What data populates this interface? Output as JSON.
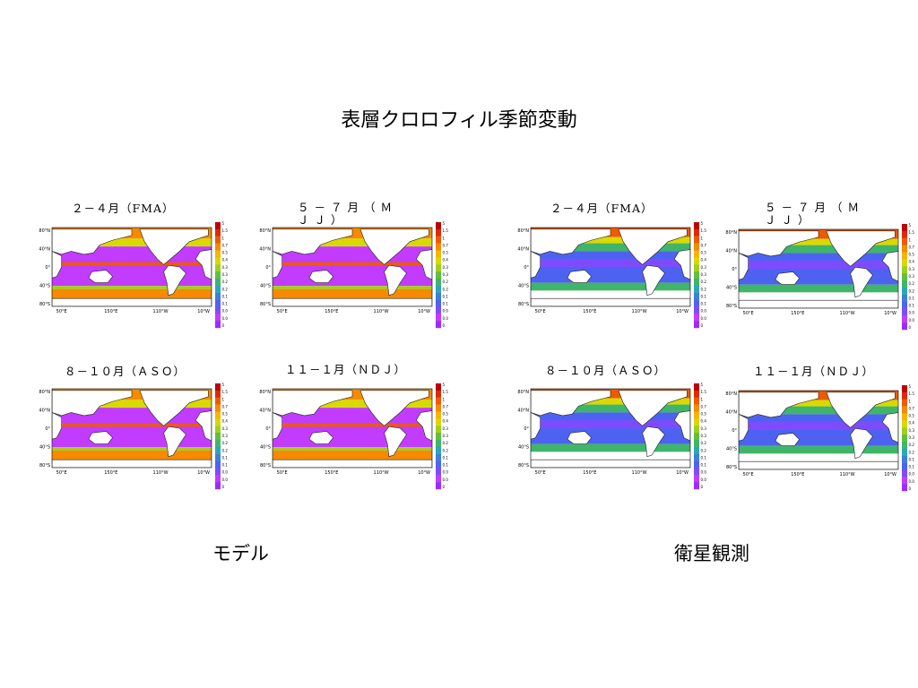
{
  "slide": {
    "title": "表層クロロフィル季節変動",
    "group_labels": {
      "model": "モデル",
      "satellite": "衛星観測"
    }
  },
  "colors": {
    "scale": [
      "#9b2cff",
      "#c23cff",
      "#7f4bff",
      "#4e62f2",
      "#3d7fd9",
      "#2aa8b8",
      "#3fb56a",
      "#5fc03a",
      "#9fd020",
      "#d9d900",
      "#f6b500",
      "#f68a00",
      "#ef5a00",
      "#e02a00",
      "#c00000"
    ],
    "land": "#ffffff",
    "missing": "#ffffff",
    "coast": "#222222"
  },
  "chart_data": [
    {
      "type": "heatmap",
      "group": "model",
      "label": "２－４月（FMA）",
      "x_ticks": [
        "50°E",
        "150°E",
        "110°W",
        "10°W"
      ],
      "y_ticks": [
        "80°N",
        "40°N",
        "0°",
        "40°S",
        "80°S"
      ],
      "colorbar_ticks": [
        "5",
        "1.5",
        "1",
        "0.75",
        "0.5",
        "0.4",
        "0.35",
        "0.3",
        "0.25",
        "0.2",
        "0.15",
        "0.1",
        "0.05",
        "0.03",
        "0"
      ]
    },
    {
      "type": "heatmap",
      "group": "model",
      "label": "５－７月（ＭＪＪ）",
      "x_ticks": [
        "50°E",
        "150°E",
        "110°W",
        "10°W"
      ],
      "y_ticks": [
        "80°N",
        "40°N",
        "0°",
        "40°S",
        "80°S"
      ],
      "colorbar_ticks": [
        "5",
        "1.5",
        "1",
        "0.75",
        "0.5",
        "0.4",
        "0.35",
        "0.3",
        "0.25",
        "0.2",
        "0.15",
        "0.1",
        "0.05",
        "0.03",
        "0"
      ]
    },
    {
      "type": "heatmap",
      "group": "satellite",
      "label": "２－４月（FMA）",
      "x_ticks": [
        "50°E",
        "150°E",
        "110°W",
        "10°W"
      ],
      "y_ticks": [
        "80°N",
        "40°N",
        "0°",
        "40°S",
        "80°S"
      ],
      "colorbar_ticks": [
        "5",
        "1.5",
        "1",
        "0.75",
        "0.5",
        "0.4",
        "0.35",
        "0.3",
        "0.25",
        "0.2",
        "0.15",
        "0.1",
        "0.05",
        "0.03",
        "0"
      ]
    },
    {
      "type": "heatmap",
      "group": "satellite",
      "label": "５－７月（ＭＪＪ）",
      "x_ticks": [
        "50°E",
        "150°E",
        "110°W",
        "10°W"
      ],
      "y_ticks": [
        "80°N",
        "40°N",
        "0°",
        "40°S",
        "80°S"
      ],
      "colorbar_ticks": [
        "5",
        "1.5",
        "1",
        "0.75",
        "0.5",
        "0.4",
        "0.35",
        "0.3",
        "0.25",
        "0.2",
        "0.15",
        "0.1",
        "0.05",
        "0.03",
        "0"
      ]
    },
    {
      "type": "heatmap",
      "group": "model",
      "label": "８－１０月（ＡＳＯ）",
      "x_ticks": [
        "50°E",
        "150°E",
        "110°W",
        "10°W"
      ],
      "y_ticks": [
        "80°N",
        "40°N",
        "0°",
        "40°S",
        "80°S"
      ],
      "colorbar_ticks": [
        "5",
        "1.5",
        "1",
        "0.75",
        "0.5",
        "0.4",
        "0.35",
        "0.3",
        "0.25",
        "0.2",
        "0.15",
        "0.1",
        "0.05",
        "0.03",
        "0"
      ]
    },
    {
      "type": "heatmap",
      "group": "model",
      "label": "１１－１月（ＮＤＪ）",
      "x_ticks": [
        "50°E",
        "150°E",
        "110°W",
        "10°W"
      ],
      "y_ticks": [
        "80°N",
        "40°N",
        "0°",
        "40°S",
        "80°S"
      ],
      "colorbar_ticks": [
        "5",
        "1.5",
        "1",
        "0.75",
        "0.5",
        "0.4",
        "0.35",
        "0.3",
        "0.25",
        "0.2",
        "0.15",
        "0.1",
        "0.05",
        "0.03",
        "0"
      ]
    },
    {
      "type": "heatmap",
      "group": "satellite",
      "label": "８－１０月（ＡＳＯ）",
      "x_ticks": [
        "50°E",
        "150°E",
        "110°W",
        "10°W"
      ],
      "y_ticks": [
        "80°N",
        "40°N",
        "0°",
        "40°S",
        "80°S"
      ],
      "colorbar_ticks": [
        "5",
        "1.5",
        "1",
        "0.75",
        "0.5",
        "0.4",
        "0.35",
        "0.3",
        "0.25",
        "0.2",
        "0.15",
        "0.1",
        "0.05",
        "0.03",
        "0"
      ]
    },
    {
      "type": "heatmap",
      "group": "satellite",
      "label": "１１－１月（ＮＤＪ）",
      "x_ticks": [
        "50°E",
        "150°E",
        "110°W",
        "10°W"
      ],
      "y_ticks": [
        "80°N",
        "40°N",
        "0°",
        "40°S",
        "80°S"
      ],
      "colorbar_ticks": [
        "5",
        "1.5",
        "1",
        "0.75",
        "0.5",
        "0.4",
        "0.35",
        "0.3",
        "0.25",
        "0.2",
        "0.15",
        "0.1",
        "0.05",
        "0.03",
        "0"
      ]
    }
  ]
}
